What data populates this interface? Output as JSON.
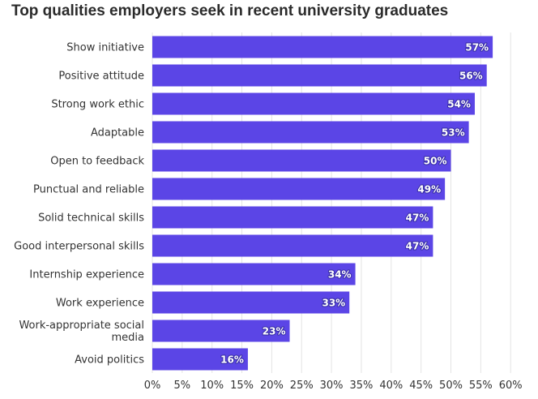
{
  "chart_data": {
    "type": "bar",
    "orientation": "horizontal",
    "title": "Top qualities employers seek in recent university graduates",
    "categories": [
      "Show initiative",
      "Positive attitude",
      "Strong work ethic",
      "Adaptable",
      "Open to feedback",
      "Punctual and reliable",
      "Solid technical skills",
      "Good interpersonal skills",
      "Internship experience",
      "Work experience",
      "Work-appropriate social media",
      "Avoid politics"
    ],
    "values": [
      57,
      56,
      54,
      53,
      50,
      49,
      47,
      47,
      34,
      33,
      23,
      16
    ],
    "value_labels": [
      "57%",
      "56%",
      "54%",
      "53%",
      "50%",
      "49%",
      "47%",
      "47%",
      "34%",
      "33%",
      "23%",
      "16%"
    ],
    "x_ticks": [
      "0%",
      "5%",
      "10%",
      "15%",
      "20%",
      "25%",
      "30%",
      "35%",
      "40%",
      "45%",
      "50%",
      "55%",
      "60%"
    ],
    "xlim": [
      0,
      60
    ],
    "grid": true,
    "bar_color": "#5b45e6"
  }
}
